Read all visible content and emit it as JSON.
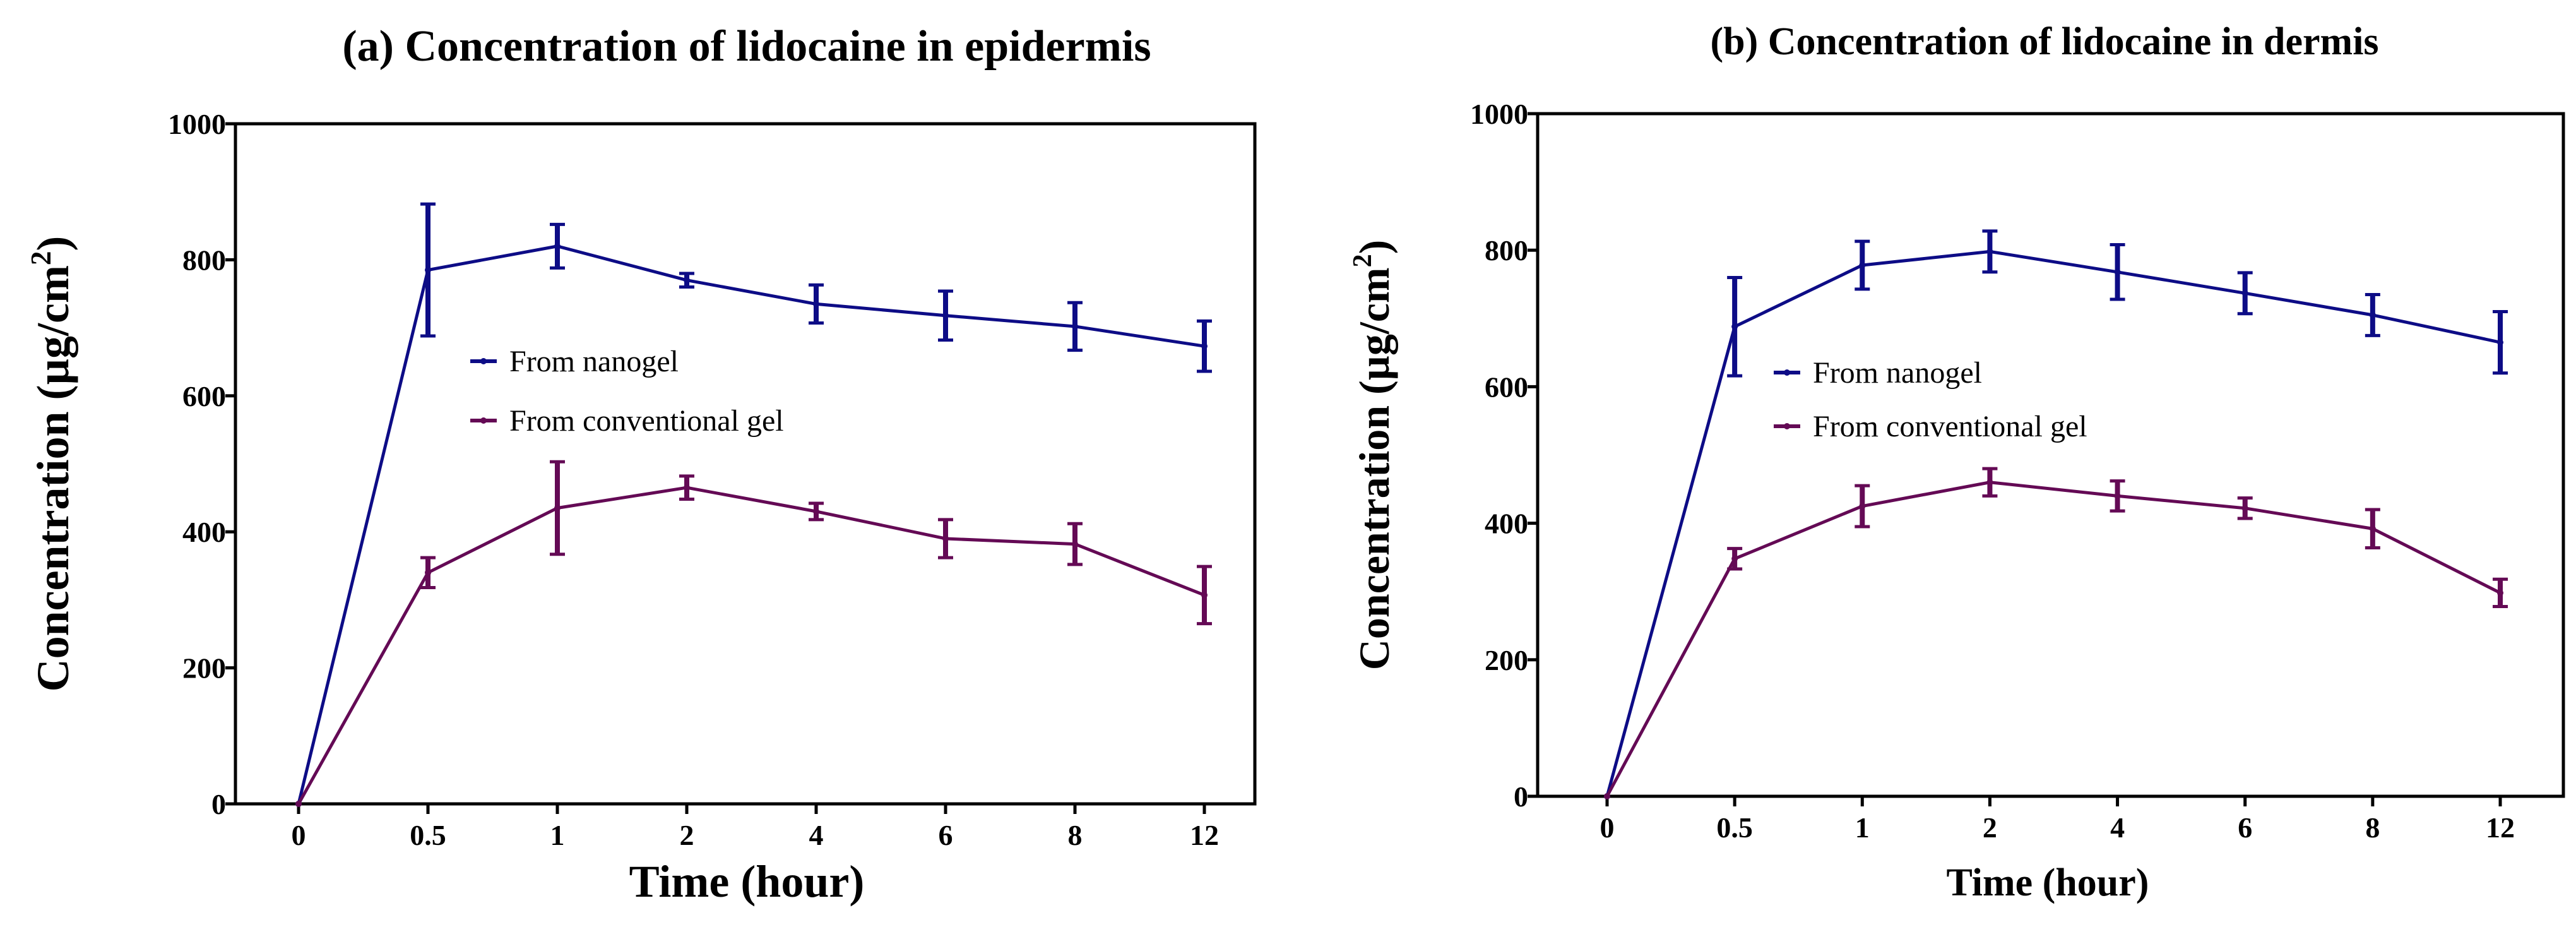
{
  "colors": {
    "nanogel": "#0d0c86",
    "conventional": "#640a55",
    "axis": "#000000"
  },
  "chart_data": [
    {
      "type": "line",
      "title": "(a) Concentration of lidocaine in epidermis",
      "xlabel": "Time (hour)",
      "ylabel": "Concentration (µg/cm",
      "ylabel_sup": "2",
      "ylabel_end": ")",
      "categories": [
        "0",
        "0.5",
        "1",
        "2",
        "4",
        "6",
        "8",
        "12"
      ],
      "ylim": [
        0,
        1000
      ],
      "yticks": [
        "0",
        "200",
        "400",
        "600",
        "800",
        "1000"
      ],
      "legend_position": "center",
      "series": [
        {
          "name": "From nanogel",
          "values": [
            0,
            785,
            820,
            770,
            735,
            718,
            702,
            673
          ],
          "errors": [
            0,
            97,
            32,
            10,
            28,
            36,
            35,
            37
          ]
        },
        {
          "name": "From conventional gel",
          "values": [
            0,
            340,
            435,
            465,
            430,
            390,
            382,
            307
          ],
          "errors": [
            0,
            22,
            68,
            17,
            12,
            28,
            30,
            42
          ]
        }
      ]
    },
    {
      "type": "line",
      "title": "(b) Concentration of lidocaine in dermis",
      "xlabel": "Time (hour)",
      "ylabel": "Concentration (µg/cm",
      "ylabel_sup": "2",
      "ylabel_end": ")",
      "categories": [
        "0",
        "0.5",
        "1",
        "2",
        "4",
        "6",
        "8",
        "12"
      ],
      "ylim": [
        0,
        1000
      ],
      "yticks": [
        "0",
        "200",
        "400",
        "600",
        "800",
        "1000"
      ],
      "legend_position": "center",
      "series": [
        {
          "name": "From nanogel",
          "values": [
            0,
            688,
            778,
            798,
            768,
            737,
            705,
            665
          ],
          "errors": [
            0,
            72,
            35,
            30,
            40,
            30,
            30,
            45
          ]
        },
        {
          "name": "From conventional gel",
          "values": [
            0,
            348,
            425,
            460,
            440,
            422,
            392,
            298
          ],
          "errors": [
            0,
            15,
            30,
            20,
            22,
            15,
            28,
            20
          ]
        }
      ]
    }
  ]
}
